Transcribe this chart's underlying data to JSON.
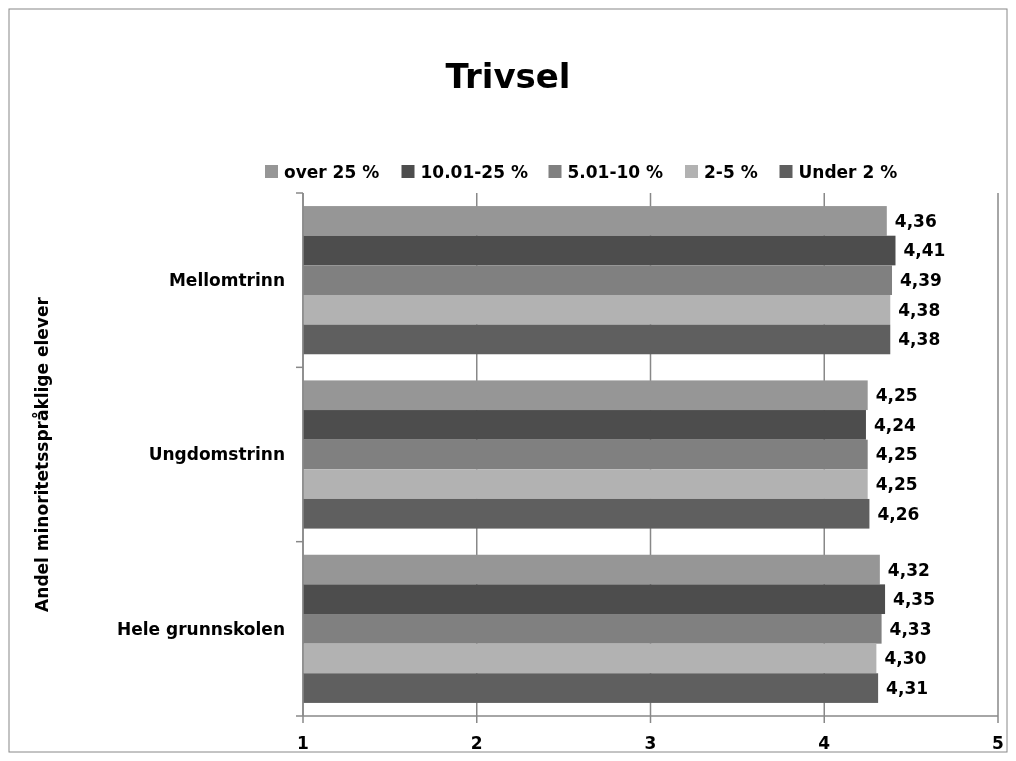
{
  "chart_data": {
    "type": "bar",
    "orientation": "horizontal",
    "title": "Trivsel",
    "ylabel": "Andel minoritetsspråklige elever",
    "categories": [
      "Mellomtrinn",
      "Ungdomstrinn",
      "Hele grunnskolen"
    ],
    "series": [
      {
        "name": "over 25 %",
        "color": "#969696",
        "values": [
          4.36,
          4.25,
          4.32
        ],
        "value_labels": [
          "4,36",
          "4,25",
          "4,32"
        ]
      },
      {
        "name": "10.01-25 %",
        "color": "#4d4d4d",
        "values": [
          4.41,
          4.24,
          4.35
        ],
        "value_labels": [
          "4,41",
          "4,24",
          "4,35"
        ]
      },
      {
        "name": "5.01-10 %",
        "color": "#808080",
        "values": [
          4.39,
          4.25,
          4.33
        ],
        "value_labels": [
          "4,39",
          "4,25",
          "4,33"
        ]
      },
      {
        "name": "2-5 %",
        "color": "#b2b2b2",
        "values": [
          4.38,
          4.25,
          4.3
        ],
        "value_labels": [
          "4,38",
          "4,25",
          "4,30"
        ]
      },
      {
        "name": "Under 2 %",
        "color": "#5f5f5f",
        "values": [
          4.38,
          4.26,
          4.31
        ],
        "value_labels": [
          "4,38",
          "4,26",
          "4,31"
        ]
      }
    ],
    "xlim": [
      1,
      5
    ],
    "xticks": [
      1,
      2,
      3,
      4,
      5
    ],
    "grid": "x",
    "legend": "top"
  }
}
